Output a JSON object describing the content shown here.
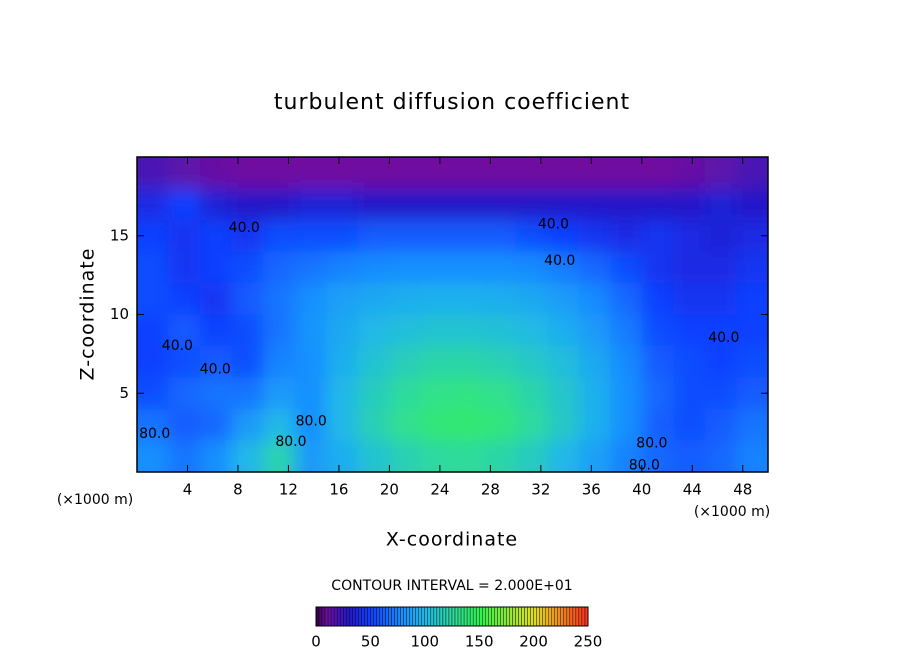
{
  "chart_data": {
    "type": "heatmap",
    "title": "turbulent diffusion coefficient",
    "x_label": "X-coordinate",
    "y_label": "Z-coordinate",
    "x_unit": "(×1000 m)",
    "y_unit": "(×1000 m)",
    "subtitle": "CONTOUR INTERVAL = 2.000E+01",
    "xlim": [
      0,
      50
    ],
    "ylim": [
      0,
      20
    ],
    "xticks": [
      4,
      8,
      12,
      16,
      20,
      24,
      28,
      32,
      36,
      40,
      44,
      48
    ],
    "yticks": [
      5,
      10,
      15
    ],
    "x_edges": [
      0,
      2.5,
      5,
      7.5,
      10,
      12.5,
      15,
      17.5,
      20,
      22.5,
      25,
      27.5,
      30,
      32.5,
      35,
      37.5,
      40,
      42.5,
      45,
      47.5,
      50
    ],
    "y_edges": [
      20,
      18,
      16,
      14,
      12,
      10,
      8,
      6,
      4,
      2,
      0
    ],
    "values": [
      [
        20,
        15,
        12,
        10,
        10,
        10,
        10,
        10,
        10,
        10,
        10,
        10,
        10,
        10,
        10,
        10,
        10,
        12,
        15,
        20
      ],
      [
        40,
        50,
        35,
        30,
        30,
        35,
        35,
        30,
        30,
        30,
        30,
        30,
        30,
        30,
        30,
        30,
        30,
        30,
        35,
        30
      ],
      [
        50,
        45,
        50,
        45,
        55,
        55,
        55,
        60,
        60,
        60,
        60,
        60,
        55,
        50,
        45,
        40,
        45,
        40,
        35,
        40
      ],
      [
        55,
        45,
        50,
        55,
        65,
        70,
        75,
        78,
        80,
        80,
        80,
        80,
        78,
        72,
        65,
        55,
        45,
        40,
        40,
        45
      ],
      [
        55,
        50,
        45,
        60,
        70,
        80,
        88,
        92,
        95,
        96,
        96,
        95,
        92,
        86,
        78,
        65,
        50,
        45,
        45,
        50
      ],
      [
        50,
        60,
        50,
        55,
        70,
        82,
        92,
        100,
        105,
        108,
        108,
        106,
        102,
        95,
        85,
        72,
        55,
        50,
        50,
        50
      ],
      [
        50,
        55,
        60,
        55,
        75,
        80,
        95,
        108,
        116,
        122,
        122,
        118,
        112,
        104,
        92,
        78,
        60,
        55,
        50,
        55
      ],
      [
        55,
        65,
        70,
        70,
        85,
        80,
        100,
        115,
        126,
        132,
        134,
        130,
        122,
        110,
        96,
        80,
        65,
        55,
        55,
        60
      ],
      [
        70,
        60,
        65,
        85,
        100,
        80,
        100,
        118,
        130,
        138,
        140,
        136,
        126,
        112,
        96,
        80,
        62,
        55,
        60,
        70
      ],
      [
        80,
        70,
        80,
        100,
        120,
        85,
        95,
        108,
        118,
        125,
        126,
        122,
        114,
        100,
        88,
        75,
        65,
        60,
        65,
        75
      ]
    ],
    "colormap": [
      [
        0,
        "#30004a"
      ],
      [
        10,
        "#7010a0"
      ],
      [
        30,
        "#2418c8"
      ],
      [
        50,
        "#1040ff"
      ],
      [
        80,
        "#1890ff"
      ],
      [
        100,
        "#20b8e8"
      ],
      [
        130,
        "#30e090"
      ],
      [
        150,
        "#30f050"
      ],
      [
        200,
        "#e0e020"
      ],
      [
        250,
        "#ff3020"
      ]
    ],
    "cbar_lim": [
      0,
      250
    ],
    "cbar_ticks": [
      0,
      50,
      100,
      150,
      200,
      250
    ],
    "annotations": [
      {
        "text": "40.0",
        "x": 8.5,
        "y": 15.5
      },
      {
        "text": "40.0",
        "x": 33,
        "y": 15.7
      },
      {
        "text": "40.0",
        "x": 33.5,
        "y": 13.4
      },
      {
        "text": "40.0",
        "x": 3.2,
        "y": 8
      },
      {
        "text": "40.0",
        "x": 6.2,
        "y": 6.5
      },
      {
        "text": "40.0",
        "x": 46.5,
        "y": 8.5
      },
      {
        "text": "80.0",
        "x": 13.8,
        "y": 3.2
      },
      {
        "text": "80.0",
        "x": 12.2,
        "y": 1.9
      },
      {
        "text": "80.0",
        "x": 40.8,
        "y": 1.8
      },
      {
        "text": "80.0",
        "x": 40.2,
        "y": 0.4
      },
      {
        "text": "80.0",
        "x": 1.4,
        "y": 2.4
      }
    ]
  }
}
